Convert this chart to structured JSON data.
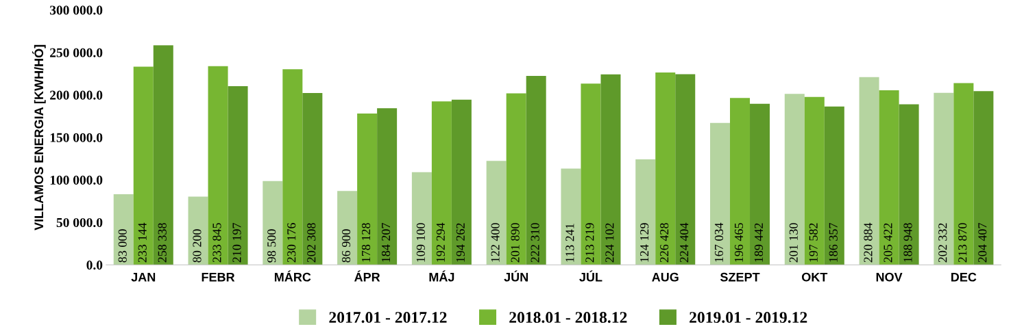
{
  "chart_data": {
    "type": "bar",
    "ylabel": "VILLAMOS ENERGIA [KWH/HÓ]",
    "categories": [
      "JAN",
      "FEBR",
      "MÁRC",
      "ÁPR",
      "MÁJ",
      "JÚN",
      "JÚL",
      "AUG",
      "SZEPT",
      "OKT",
      "NOV",
      "DEC"
    ],
    "series": [
      {
        "name": "2017.01 - 2017.12",
        "color": "#b5d4a0",
        "values": [
          83000,
          80200,
          98500,
          86900,
          109100,
          122400,
          113241,
          124129,
          167034,
          201130,
          220884,
          202332
        ],
        "value_labels": [
          "83 000",
          "80 200",
          "98 500",
          "86 900",
          "109 100",
          "122 400",
          "113 241",
          "124 129",
          "167 034",
          "201 130",
          "220 884",
          "202 332"
        ]
      },
      {
        "name": "2018.01 - 2018.12",
        "color": "#77b632",
        "values": [
          233144,
          233845,
          230176,
          178128,
          192294,
          201890,
          213219,
          226428,
          196465,
          197582,
          205422,
          213870
        ],
        "value_labels": [
          "233 144",
          "233 845",
          "230 176",
          "178 128",
          "192 294",
          "201 890",
          "213 219",
          "226 428",
          "196 465",
          "197 582",
          "205 422",
          "213 870"
        ]
      },
      {
        "name": "2019.01 - 2019.12",
        "color": "#5f9a2a",
        "values": [
          258338,
          210197,
          202308,
          184207,
          194262,
          222310,
          224102,
          224404,
          189442,
          186357,
          188948,
          204407
        ],
        "value_labels": [
          "258 338",
          "210 197",
          "202 308",
          "184 207",
          "194 262",
          "222 310",
          "224 102",
          "224 404",
          "189 442",
          "186 357",
          "188 948",
          "204 407"
        ]
      }
    ],
    "ylim": [
      0,
      300000
    ],
    "yticks": [
      {
        "value": 0,
        "label": "0.0"
      },
      {
        "value": 50000,
        "label": "50 000.0"
      },
      {
        "value": 100000,
        "label": "100 000.0"
      },
      {
        "value": 150000,
        "label": "150 000.0"
      },
      {
        "value": 200000,
        "label": "200 000.0"
      },
      {
        "value": 250000,
        "label": "250 000.0"
      },
      {
        "value": 300000,
        "label": "300 000.0"
      }
    ],
    "grid": false,
    "legend": "bottom"
  }
}
